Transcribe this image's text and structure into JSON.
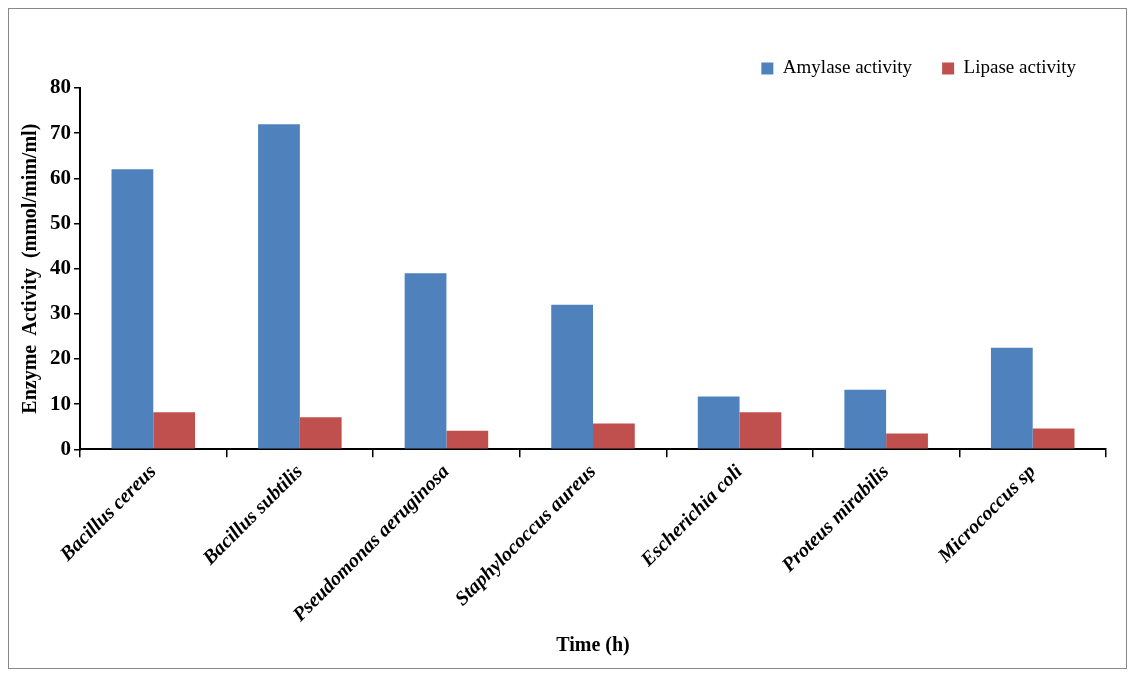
{
  "chart_data": {
    "type": "bar",
    "xlabel": "Time (h)",
    "ylabel": "Enzyme  Activity  (mmol/mim/ml)",
    "categories": [
      "Bacillus cereus",
      "Bacillus subtilis",
      "Pseudomonas aeruginosa",
      "Staphylococcus aureus",
      "Escherichia coli",
      "Proteus mirabilis",
      "Micrococcus sp"
    ],
    "series": [
      {
        "name": "Amylase activity",
        "color": "#4f81bd",
        "values": [
          62,
          72,
          39,
          32,
          11.7,
          13.2,
          22.5
        ]
      },
      {
        "name": "Lipase activity",
        "color": "#c0504d",
        "values": [
          8.2,
          7.1,
          4.1,
          5.7,
          8.2,
          3.5,
          4.6
        ]
      }
    ],
    "ylim": [
      0,
      80
    ],
    "yticks": [
      0,
      10,
      20,
      30,
      40,
      50,
      60,
      70,
      80
    ],
    "grid": false,
    "legend": "top right"
  }
}
